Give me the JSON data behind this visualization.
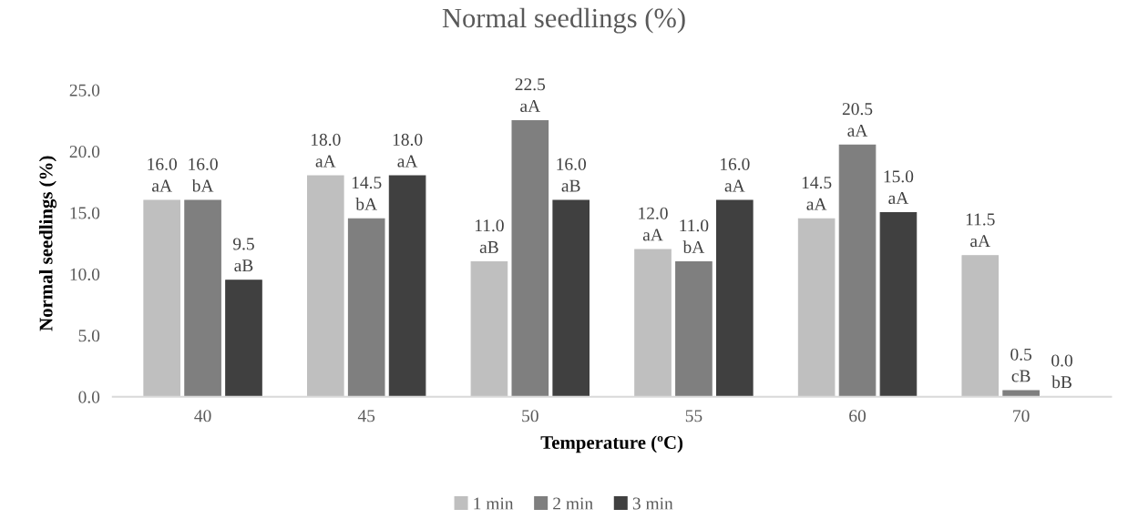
{
  "chart_data": {
    "type": "bar",
    "title": "Normal seedlings (%)",
    "xlabel": "Temperature (ºC)",
    "ylabel": "Normal seedlings (%)",
    "categories": [
      "40",
      "45",
      "50",
      "55",
      "60",
      "70"
    ],
    "series": [
      {
        "name": "1 min",
        "color": "#bfbfbf",
        "values": [
          16.0,
          18.0,
          11.0,
          12.0,
          14.5,
          11.5
        ],
        "value_labels": [
          "16.0\naA",
          "18.0\naA",
          "11.0\naB",
          "12.0\naA",
          "14.5\naA",
          "11.5\naA"
        ]
      },
      {
        "name": "2 min",
        "color": "#7f7f7f",
        "values": [
          16.0,
          14.5,
          22.5,
          11.0,
          20.5,
          0.5
        ],
        "value_labels": [
          "16.0\nbA",
          "14.5\nbA",
          "22.5\naA",
          "11.0\nbA",
          "20.5\naA",
          "0.5\ncB"
        ]
      },
      {
        "name": "3 min",
        "color": "#404040",
        "values": [
          9.5,
          18.0,
          16.0,
          16.0,
          15.0,
          0.0
        ],
        "value_labels": [
          "9.5\naB",
          "18.0\naA",
          "16.0\naB",
          "16.0\naA",
          "15.0\naA",
          "0.0\nbB"
        ]
      }
    ],
    "ylim": [
      0,
      25
    ],
    "yticks": [
      {
        "value": 0,
        "label": "0.0"
      },
      {
        "value": 5,
        "label": "5.0"
      },
      {
        "value": 10,
        "label": "10.0"
      },
      {
        "value": 15,
        "label": "15.0"
      },
      {
        "value": 20,
        "label": "20.0"
      },
      {
        "value": 25,
        "label": "25.0"
      }
    ],
    "grid": false,
    "legend": "bottom"
  }
}
